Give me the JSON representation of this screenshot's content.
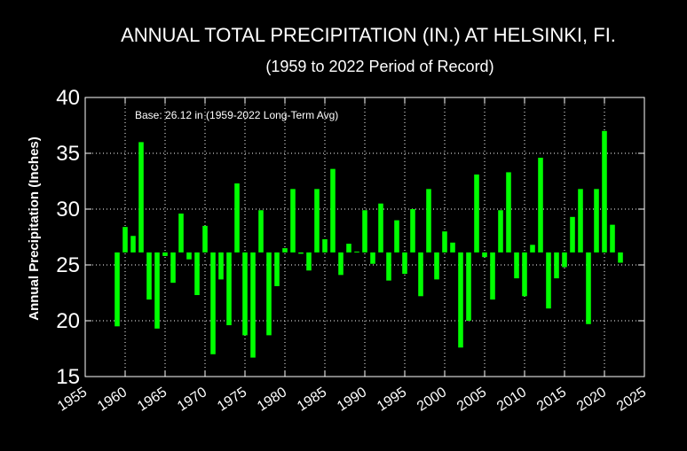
{
  "chart_data": {
    "type": "bar",
    "title": "ANNUAL TOTAL PRECIPITATION (IN.) AT HELSINKI, FI.",
    "subtitle": "(1959 to 2022 Period of Record)",
    "ylabel": "Annual Precipitation (Inches)",
    "xlabel": "",
    "annotation": "Base: 26.12 in (1959-2022 Long-Term Avg)",
    "base": 26.12,
    "xlim": [
      1955,
      2025
    ],
    "ylim": [
      15,
      40
    ],
    "xticks": [
      1955,
      1960,
      1965,
      1970,
      1975,
      1980,
      1985,
      1990,
      1995,
      2000,
      2005,
      2010,
      2015,
      2020,
      2025
    ],
    "yticks": [
      15,
      20,
      25,
      30,
      35,
      40
    ],
    "grid": true,
    "bar_color": "#00ff00",
    "x": [
      1959,
      1960,
      1961,
      1962,
      1963,
      1964,
      1965,
      1966,
      1967,
      1968,
      1969,
      1970,
      1971,
      1972,
      1973,
      1974,
      1975,
      1976,
      1977,
      1978,
      1979,
      1980,
      1981,
      1982,
      1983,
      1984,
      1985,
      1986,
      1987,
      1988,
      1989,
      1990,
      1991,
      1992,
      1993,
      1994,
      1995,
      1996,
      1997,
      1998,
      1999,
      2000,
      2001,
      2002,
      2003,
      2004,
      2005,
      2006,
      2007,
      2008,
      2009,
      2010,
      2011,
      2012,
      2013,
      2014,
      2015,
      2016,
      2017,
      2018,
      2019,
      2020,
      2021,
      2022
    ],
    "values": [
      19.5,
      28.4,
      27.6,
      36.0,
      21.9,
      19.3,
      25.8,
      23.4,
      29.6,
      25.5,
      22.3,
      28.5,
      17.0,
      23.7,
      19.6,
      32.3,
      18.7,
      16.7,
      29.9,
      18.7,
      23.1,
      26.5,
      31.8,
      26.0,
      24.5,
      31.8,
      27.3,
      33.6,
      24.1,
      26.9,
      26.2,
      29.9,
      25.1,
      30.5,
      23.6,
      29.0,
      24.2,
      30.0,
      22.2,
      31.8,
      23.7,
      28.0,
      27.0,
      17.6,
      20.0,
      33.1,
      25.7,
      21.9,
      29.9,
      33.3,
      23.8,
      22.2,
      26.8,
      34.6,
      21.1,
      23.8,
      24.8,
      29.3,
      31.8,
      19.7,
      31.8,
      37.0,
      28.6,
      25.2
    ]
  }
}
